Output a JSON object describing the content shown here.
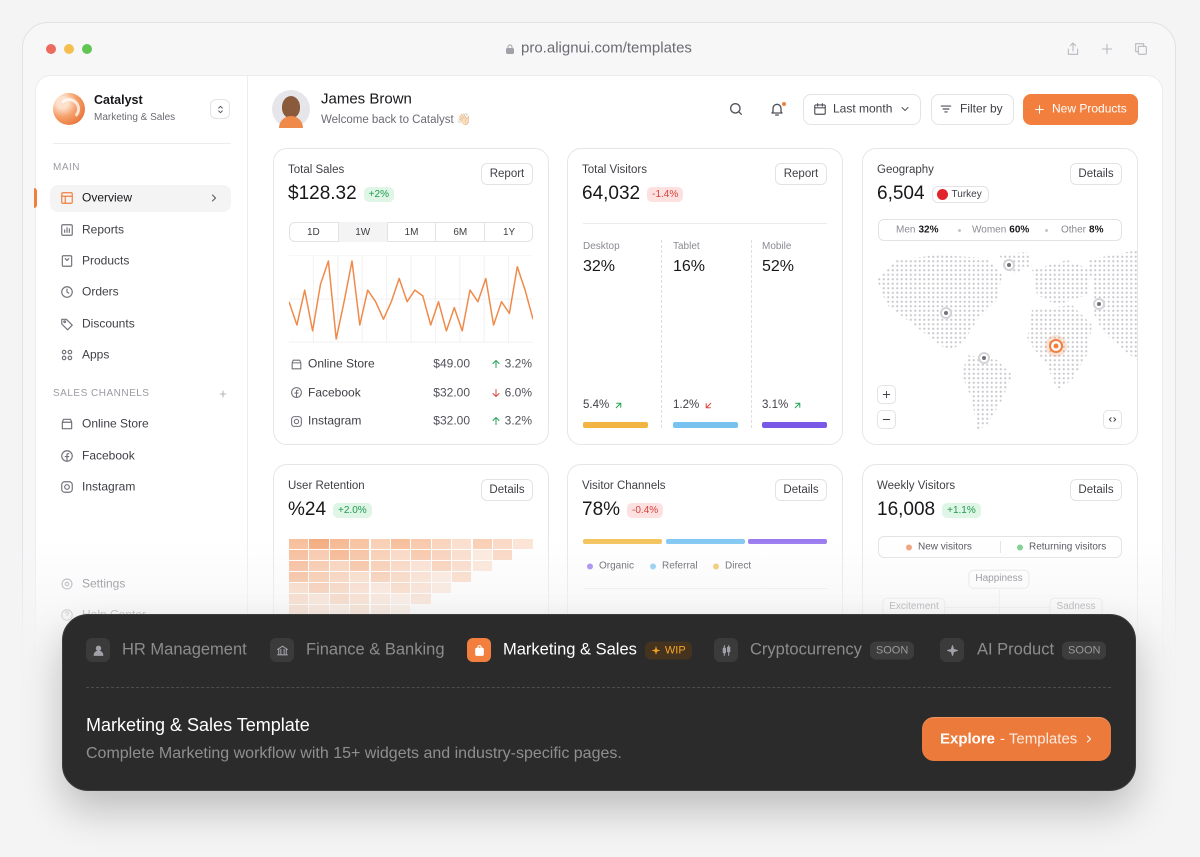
{
  "browser": {
    "url": "pro.alignui.com/templates"
  },
  "sidebar": {
    "brand": {
      "name": "Catalyst",
      "subtitle": "Marketing & Sales"
    },
    "main_label": "MAIN",
    "main_items": [
      {
        "label": "Overview",
        "active": true
      },
      {
        "label": "Reports",
        "active": false
      },
      {
        "label": "Products",
        "active": false
      },
      {
        "label": "Orders",
        "active": false
      },
      {
        "label": "Discounts",
        "active": false
      },
      {
        "label": "Apps",
        "active": false
      }
    ],
    "channels_label": "SALES CHANNELS",
    "channel_items": [
      "Online Store",
      "Facebook",
      "Instagram"
    ],
    "footer_items": [
      "Settings",
      "Help Center"
    ]
  },
  "header": {
    "user": "James Brown",
    "greeting": "Welcome back to Catalyst 👋🏻",
    "period": "Last month",
    "filter": "Filter by",
    "cta": "New Products"
  },
  "total_sales": {
    "title": "Total Sales",
    "value": "$128.32",
    "change": "+2%",
    "trend": "up",
    "button": "Report",
    "ranges": [
      {
        "label": "1D",
        "active": false
      },
      {
        "label": "1W",
        "active": true
      },
      {
        "label": "1M",
        "active": false
      },
      {
        "label": "6M",
        "active": false
      },
      {
        "label": "1Y",
        "active": false
      }
    ],
    "sparkline": [
      40,
      20,
      50,
      15,
      55,
      75,
      8,
      40,
      75,
      20,
      50,
      40,
      25,
      40,
      60,
      40,
      50,
      45,
      20,
      40,
      15,
      35,
      15,
      50,
      40,
      60,
      20,
      40,
      30,
      70,
      50,
      25
    ],
    "line_color": "#f08a4b",
    "rows": [
      {
        "name": "Online Store",
        "amount": "$49.00",
        "change": "3.2%",
        "trend": "up"
      },
      {
        "name": "Facebook",
        "amount": "$32.00",
        "change": "6.0%",
        "trend": "down"
      },
      {
        "name": "Instagram",
        "amount": "$32.00",
        "change": "3.2%",
        "trend": "up"
      }
    ]
  },
  "total_visitors": {
    "title": "Total Visitors",
    "value": "64,032",
    "change": "-1.4%",
    "trend": "down",
    "button": "Report",
    "segments": [
      {
        "label": "Desktop",
        "share": "32%",
        "change": "5.4%",
        "trend": "up",
        "color": "#f2b544"
      },
      {
        "label": "Tablet",
        "share": "16%",
        "change": "1.2%",
        "trend": "down",
        "color": "#78c2f0"
      },
      {
        "label": "Mobile",
        "share": "52%",
        "change": "3.1%",
        "trend": "up",
        "color": "#7b57e8"
      }
    ]
  },
  "geography": {
    "title": "Geography",
    "value": "6,504",
    "country": "Turkey",
    "button": "Details",
    "breakdown": [
      {
        "label": "Men",
        "value": "32%"
      },
      {
        "label": "Women",
        "value": "60%"
      },
      {
        "label": "Other",
        "value": "8%"
      }
    ]
  },
  "user_retention": {
    "title": "User Retention",
    "value": "%24",
    "change": "+2.0%",
    "trend": "up",
    "button": "Details"
  },
  "visitor_channels": {
    "title": "Visitor Channels",
    "value": "78%",
    "change": "-0.4%",
    "trend": "down",
    "button": "Details",
    "channels": [
      {
        "name": "Organic",
        "color": "#9b7cf0"
      },
      {
        "name": "Referral",
        "color": "#84c8f2"
      },
      {
        "name": "Direct",
        "color": "#f2c45e"
      }
    ]
  },
  "weekly_visitors": {
    "title": "Weekly Visitors",
    "value": "16,008",
    "change": "+1.1%",
    "trend": "up",
    "button": "Details",
    "legend": [
      {
        "name": "New visitors",
        "color": "#f0a07a"
      },
      {
        "name": "Returning visitors",
        "color": "#7ccf8e"
      }
    ],
    "radar_labels": [
      "Happiness",
      "Excitement",
      "Sadness"
    ]
  },
  "template_panel": {
    "tabs": [
      {
        "label": "HR Management",
        "active": false
      },
      {
        "label": "Finance & Banking",
        "active": false
      },
      {
        "label": "Marketing & Sales",
        "badge": "WIP",
        "active": true
      },
      {
        "label": "Cryptocurrency",
        "badge": "SOON",
        "active": false
      },
      {
        "label": "AI Product",
        "badge": "SOON",
        "active": false
      }
    ],
    "title": "Marketing & Sales Template",
    "description": "Complete Marketing workflow with 15+ widgets and industry-specific pages.",
    "button": {
      "label": "Explore",
      "sub": "- Templates"
    }
  }
}
